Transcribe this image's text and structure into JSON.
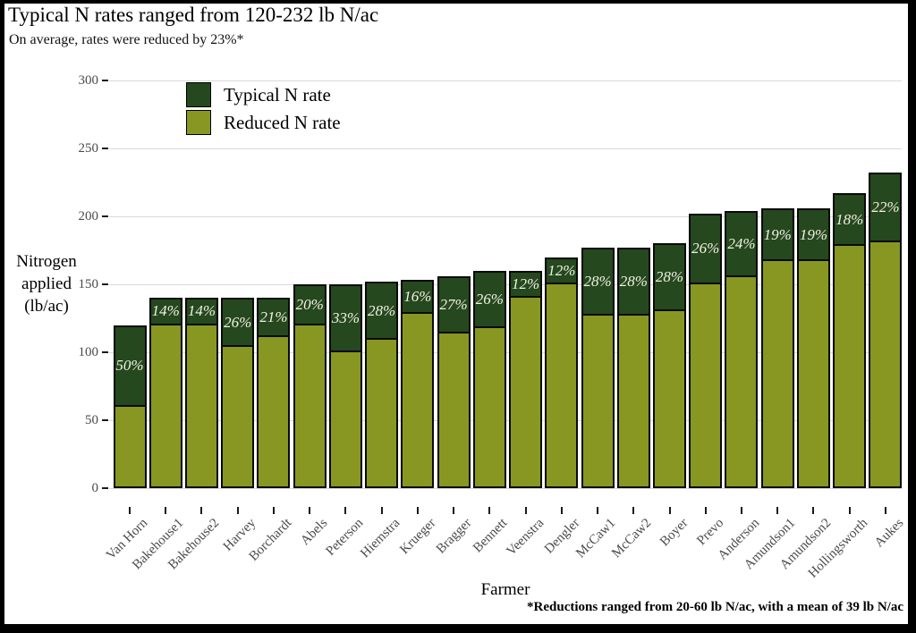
{
  "chart_data": {
    "type": "bar",
    "variant": "overlaid-stacked",
    "title": "Typical N rates ranged from 120-232 lb N/ac",
    "subtitle": "On average, rates were reduced by 23%*",
    "xlabel": "Farmer",
    "ylabel": "Nitrogen applied (lb/ac)",
    "ylabel_lines": [
      "Nitrogen",
      "applied",
      "(lb/ac)"
    ],
    "footnote": "*Reductions ranged from 20-60 lb N/ac, with a mean of 39 lb N/ac",
    "ylim": [
      0,
      300
    ],
    "yticks": [
      0,
      50,
      100,
      150,
      200,
      250,
      300
    ],
    "grid": true,
    "legend_position": "inside-top-left",
    "categories": [
      "Van Horn",
      "Bakehouse1",
      "Bakehouse2",
      "Harvey",
      "Borchardt",
      "Abels",
      "Peterson",
      "Hiemstra",
      "Krueger",
      "Bragger",
      "Bennett",
      "Veenstra",
      "Dengler",
      "McCaw1",
      "McCaw2",
      "Boyer",
      "Prevo",
      "Anderson",
      "Amundson1",
      "Amundson2",
      "Hollingsworth",
      "Aukes"
    ],
    "series": [
      {
        "name": "Typical N rate",
        "color": "#25481e",
        "values": [
          120,
          140,
          140,
          140,
          140,
          150,
          150,
          152,
          153,
          156,
          160,
          160,
          170,
          177,
          177,
          180,
          202,
          204,
          206,
          206,
          217,
          232
        ]
      },
      {
        "name": "Reduced N rate",
        "color": "#879722",
        "values": [
          60,
          120,
          120,
          104,
          111,
          120,
          100,
          109,
          128,
          114,
          118,
          140,
          150,
          127,
          127,
          130,
          150,
          155,
          167,
          167,
          178,
          181
        ]
      }
    ],
    "bar_labels": [
      "50%",
      "14%",
      "14%",
      "26%",
      "21%",
      "20%",
      "33%",
      "28%",
      "16%",
      "27%",
      "26%",
      "12%",
      "12%",
      "28%",
      "28%",
      "28%",
      "26%",
      "24%",
      "19%",
      "19%",
      "18%",
      "22%"
    ],
    "bar_label_color": "#f2f1e4",
    "gridline_color": "#d9d9d9",
    "tick_label_color": "#4a4a4a"
  }
}
